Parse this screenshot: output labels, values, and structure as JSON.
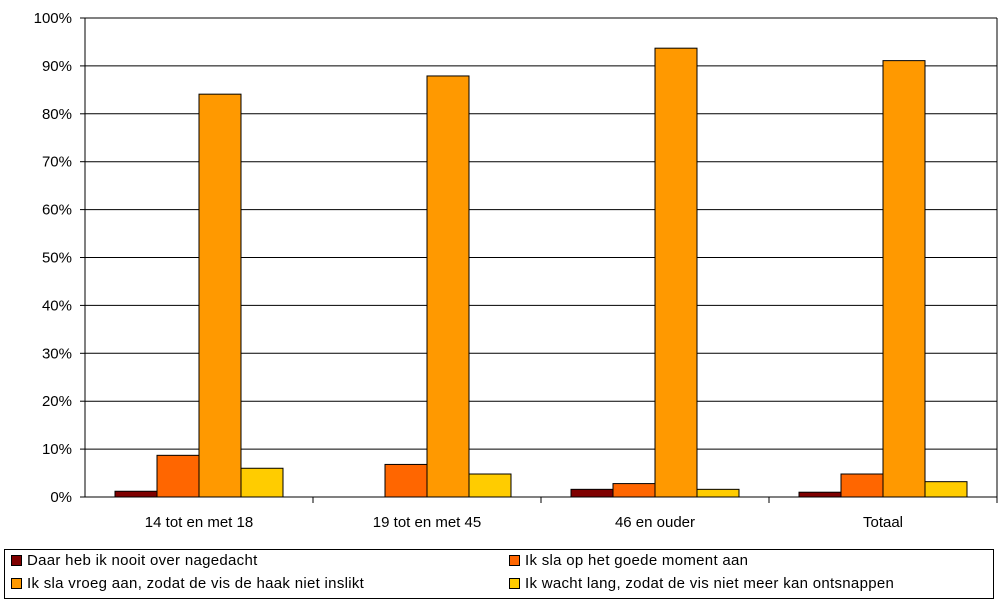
{
  "chart_data": {
    "type": "bar",
    "categories": [
      "14 tot en met 18",
      "19 tot en met 45",
      "46 en ouder",
      "Totaal"
    ],
    "series": [
      {
        "name": "Daar heb ik nooit over nagedacht",
        "color": "#7f0000",
        "values": [
          1.2,
          0,
          1.6,
          1.0
        ]
      },
      {
        "name": "Ik sla op het goede moment aan",
        "color": "#ff6600",
        "values": [
          8.7,
          6.8,
          2.8,
          4.8
        ]
      },
      {
        "name": "Ik sla vroeg aan, zodat de vis de haak niet inslikt",
        "color": "#ff9900",
        "values": [
          84.1,
          87.9,
          93.7,
          91.1
        ]
      },
      {
        "name": "Ik wacht lang, zodat de vis niet meer kan ontsnappen",
        "color": "#ffcc00",
        "values": [
          6.0,
          4.8,
          1.6,
          3.2
        ]
      }
    ],
    "y_ticks": [
      "0%",
      "10%",
      "20%",
      "30%",
      "40%",
      "50%",
      "60%",
      "70%",
      "80%",
      "90%",
      "100%"
    ],
    "ylim": [
      0,
      100
    ],
    "grid": true,
    "legend_position": "bottom"
  }
}
